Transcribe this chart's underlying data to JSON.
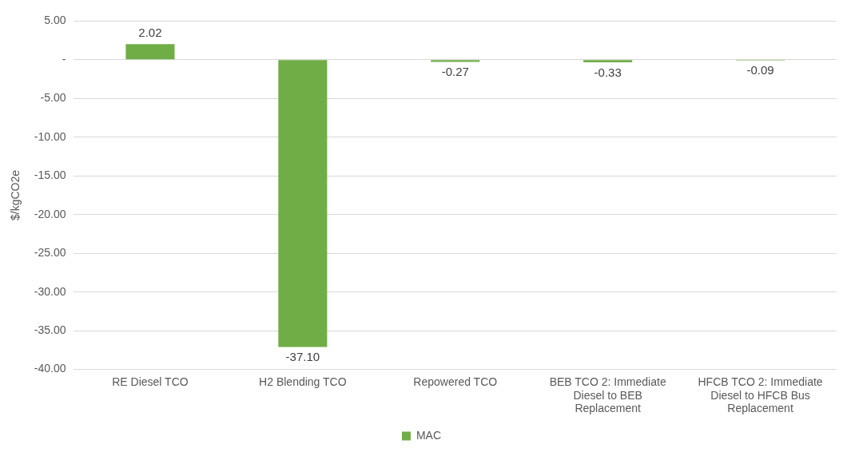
{
  "chart_data": {
    "type": "bar",
    "ylabel": "$/kgCO2e",
    "categories": [
      "RE Diesel TCO",
      "H2 Blending TCO",
      "Repowered TCO",
      "BEB TCO 2: Immediate Diesel to BEB Replacement",
      "HFCB TCO 2: Immediate Diesel to HFCB Bus Replacement"
    ],
    "series": [
      {
        "name": "MAC",
        "color": "#70ad47",
        "values": [
          2.02,
          -37.1,
          -0.27,
          -0.33,
          -0.09
        ],
        "value_labels": [
          "2.02",
          "-37.10",
          "-0.27",
          "-0.33",
          "-0.09"
        ]
      }
    ],
    "ylim": [
      -40,
      5
    ],
    "yticks": [
      {
        "value": 5,
        "label": "5.00"
      },
      {
        "value": 0,
        "label": "-"
      },
      {
        "value": -5,
        "label": "-5.00"
      },
      {
        "value": -10,
        "label": "-10.00"
      },
      {
        "value": -15,
        "label": "-15.00"
      },
      {
        "value": -20,
        "label": "-20.00"
      },
      {
        "value": -25,
        "label": "-25.00"
      },
      {
        "value": -30,
        "label": "-30.00"
      },
      {
        "value": -35,
        "label": "-35.00"
      },
      {
        "value": -40,
        "label": "-40.00"
      }
    ],
    "grid": "y",
    "legend": "bottom"
  }
}
